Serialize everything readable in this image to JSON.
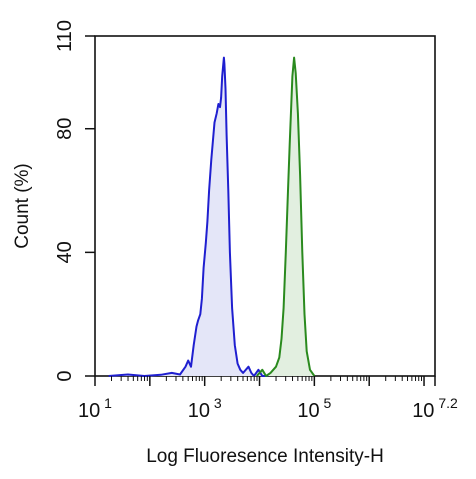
{
  "chart_data": {
    "type": "area",
    "title": "",
    "xlabel": "Log Fluoresence Intensity-H",
    "ylabel": "Count  (%)",
    "xscale": "log",
    "xlim_log10": [
      1,
      7.2
    ],
    "ylim": [
      0,
      110
    ],
    "x_ticks": [
      {
        "base": "10",
        "exp": "1",
        "value_log10": 1
      },
      {
        "base": "10",
        "exp": "3",
        "value_log10": 3
      },
      {
        "base": "10",
        "exp": "5",
        "value_log10": 5
      },
      {
        "base": "10",
        "exp": "7.2",
        "value_log10": 7.2
      }
    ],
    "y_ticks": [
      {
        "label": "0",
        "value": 0
      },
      {
        "label": "40",
        "value": 40
      },
      {
        "label": "80",
        "value": 80
      },
      {
        "label": "110",
        "value": 110
      }
    ],
    "grid": false,
    "legend": "none",
    "series": [
      {
        "color": "#1f1fd0",
        "fill": "#e4e6f8",
        "points_log10x": [
          [
            1.25,
            0
          ],
          [
            1.6,
            0.5
          ],
          [
            1.9,
            0
          ],
          [
            2.2,
            0.4
          ],
          [
            2.4,
            1
          ],
          [
            2.55,
            0.5
          ],
          [
            2.65,
            3
          ],
          [
            2.7,
            5
          ],
          [
            2.75,
            3
          ],
          [
            2.8,
            10
          ],
          [
            2.85,
            16
          ],
          [
            2.88,
            18
          ],
          [
            2.92,
            20
          ],
          [
            2.95,
            25
          ],
          [
            2.98,
            35
          ],
          [
            3.02,
            43
          ],
          [
            3.05,
            50
          ],
          [
            3.08,
            60
          ],
          [
            3.12,
            70
          ],
          [
            3.15,
            76
          ],
          [
            3.18,
            82
          ],
          [
            3.22,
            85
          ],
          [
            3.25,
            88
          ],
          [
            3.28,
            87
          ],
          [
            3.3,
            90
          ],
          [
            3.32,
            97
          ],
          [
            3.35,
            103
          ],
          [
            3.36,
            101
          ],
          [
            3.38,
            93
          ],
          [
            3.4,
            78
          ],
          [
            3.43,
            60
          ],
          [
            3.46,
            40
          ],
          [
            3.5,
            22
          ],
          [
            3.55,
            10
          ],
          [
            3.6,
            4
          ],
          [
            3.65,
            2
          ],
          [
            3.7,
            1
          ],
          [
            3.8,
            3
          ],
          [
            3.85,
            1
          ],
          [
            3.9,
            0
          ],
          [
            3.98,
            2
          ],
          [
            4.05,
            0
          ],
          [
            4.15,
            0
          ]
        ]
      },
      {
        "color": "#2a8a1e",
        "fill": "#e2efe0",
        "points_log10x": [
          [
            3.95,
            0
          ],
          [
            4.05,
            2
          ],
          [
            4.12,
            0
          ],
          [
            4.2,
            1
          ],
          [
            4.3,
            3
          ],
          [
            4.36,
            6
          ],
          [
            4.4,
            12
          ],
          [
            4.44,
            22
          ],
          [
            4.48,
            40
          ],
          [
            4.52,
            60
          ],
          [
            4.55,
            75
          ],
          [
            4.58,
            88
          ],
          [
            4.6,
            97
          ],
          [
            4.63,
            103
          ],
          [
            4.66,
            98
          ],
          [
            4.7,
            85
          ],
          [
            4.74,
            65
          ],
          [
            4.78,
            40
          ],
          [
            4.82,
            20
          ],
          [
            4.86,
            8
          ],
          [
            4.92,
            2
          ],
          [
            5.0,
            0
          ]
        ]
      }
    ]
  }
}
